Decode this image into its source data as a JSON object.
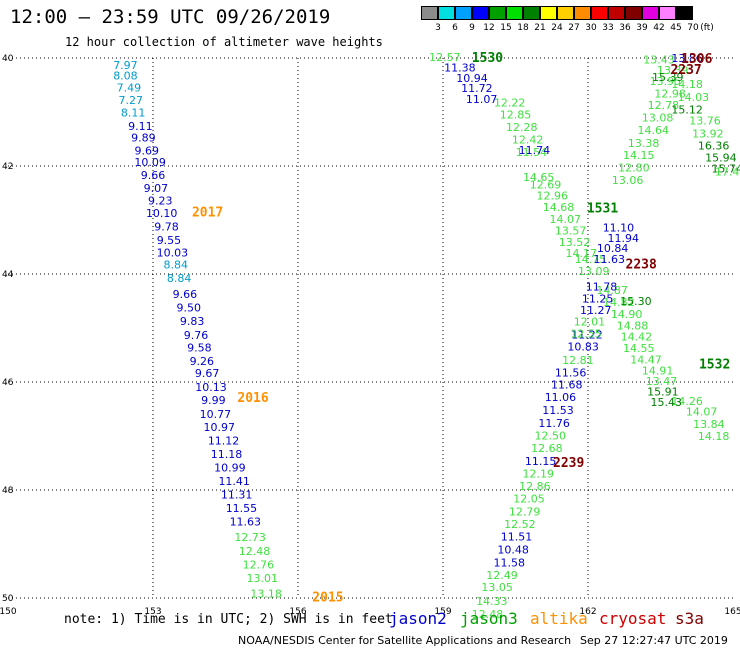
{
  "header": {
    "title": "12:00 — 23:59 UTC 09/26/2019",
    "subtitle": "12 hour collection of altimeter wave heights"
  },
  "color_scale": {
    "unit": "(ft)",
    "colors": [
      "#8c8c8c",
      "#00e0e0",
      "#00a0ff",
      "#0000ff",
      "#00a000",
      "#00e000",
      "#008000",
      "#ffff00",
      "#ffd000",
      "#ff8c00",
      "#ff0000",
      "#c00000",
      "#800000",
      "#e000e0",
      "#ff80ff",
      "#000000"
    ],
    "labels": [
      "3",
      "6",
      "9",
      "12",
      "15",
      "18",
      "21",
      "24",
      "27",
      "30",
      "33",
      "36",
      "39",
      "42",
      "45",
      "70"
    ]
  },
  "note": "note: 1) Time is in UTC; 2) SWH is in feet",
  "satellites": [
    {
      "name": "jason2",
      "color": "#0000cc"
    },
    {
      "name": "jason3",
      "color": "#00a000"
    },
    {
      "name": "altika",
      "color": "#ff9000"
    },
    {
      "name": "cryosat",
      "color": "#cc0000"
    },
    {
      "name": "s3a",
      "color": "#800000"
    }
  ],
  "footer": {
    "credit": "NOAA/NESDIS Center for Satellite Applications and Research",
    "timestamp": "Sep 27 12:27:47 UTC 2019"
  },
  "chart_data": {
    "type": "scatter",
    "title": "12:00 — 23:59 UTC 09/26/2019",
    "x_ticks": [
      "150",
      "153",
      "156",
      "159",
      "162",
      "165"
    ],
    "y_ticks": [
      "40",
      "42",
      "44",
      "46",
      "48",
      "50"
    ],
    "xlim": [
      150,
      165
    ],
    "ylim": [
      50,
      40
    ],
    "grid": true,
    "time_labels": [
      {
        "text": "2017",
        "lon": 154.13,
        "lat": 42.84,
        "color": "#ff9000"
      },
      {
        "text": "2016",
        "lon": 155.07,
        "lat": 46.28,
        "color": "#ff9000"
      },
      {
        "text": "2015",
        "lon": 156.62,
        "lat": 49.97,
        "color": "#ff9000"
      },
      {
        "text": "1530",
        "lon": 159.92,
        "lat": 39.98,
        "color": "#008000"
      },
      {
        "text": "1531",
        "lon": 162.3,
        "lat": 42.77,
        "color": "#008000"
      },
      {
        "text": "1532",
        "lon": 164.62,
        "lat": 45.66,
        "color": "#008000"
      },
      {
        "text": "2238",
        "lon": 163.1,
        "lat": 43.81,
        "color": "#800000"
      },
      {
        "text": "2239",
        "lon": 161.6,
        "lat": 47.48,
        "color": "#800000"
      },
      {
        "text": "1306",
        "lon": 164.25,
        "lat": 40.0,
        "color": "#800000"
      },
      {
        "text": "2237",
        "lon": 164.03,
        "lat": 40.2,
        "color": "#800000"
      }
    ],
    "series": [
      {
        "name": "",
        "color": "#009ccc",
        "points": [
          {
            "lon": 152.43,
            "lat": 40.13,
            "v": "7.97"
          },
          {
            "lon": 152.43,
            "lat": 40.32,
            "v": "8.08"
          },
          {
            "lon": 152.5,
            "lat": 40.55,
            "v": "7.49"
          },
          {
            "lon": 152.54,
            "lat": 40.78,
            "v": "7.27"
          },
          {
            "lon": 152.59,
            "lat": 41.01,
            "v": "8.11"
          }
        ]
      },
      {
        "name": "",
        "color": "#0000cc",
        "points": [
          {
            "lon": 152.74,
            "lat": 41.26,
            "v": "9.11"
          },
          {
            "lon": 152.8,
            "lat": 41.47,
            "v": "9.89"
          },
          {
            "lon": 152.87,
            "lat": 41.71,
            "v": "9.69"
          },
          {
            "lon": 152.94,
            "lat": 41.93,
            "v": "10.09"
          },
          {
            "lon": 153.0,
            "lat": 42.17,
            "v": "9.66"
          },
          {
            "lon": 153.06,
            "lat": 42.41,
            "v": "9.07"
          },
          {
            "lon": 153.15,
            "lat": 42.64,
            "v": "9.23"
          },
          {
            "lon": 153.18,
            "lat": 42.87,
            "v": "10.10"
          },
          {
            "lon": 153.28,
            "lat": 43.12,
            "v": "9.78"
          },
          {
            "lon": 153.33,
            "lat": 43.37,
            "v": "9.55"
          },
          {
            "lon": 153.4,
            "lat": 43.6,
            "v": "10.03"
          }
        ]
      },
      {
        "name": "",
        "color": "#009ccc",
        "points": [
          {
            "lon": 153.47,
            "lat": 43.82,
            "v": "8.84"
          },
          {
            "lon": 153.54,
            "lat": 44.07,
            "v": "8.84"
          }
        ]
      },
      {
        "name": "",
        "color": "#0000cc",
        "points": [
          {
            "lon": 153.66,
            "lat": 44.37,
            "v": "9.66"
          },
          {
            "lon": 153.74,
            "lat": 44.62,
            "v": "9.50"
          },
          {
            "lon": 153.81,
            "lat": 44.87,
            "v": "9.83"
          },
          {
            "lon": 153.89,
            "lat": 45.13,
            "v": "9.76"
          },
          {
            "lon": 153.96,
            "lat": 45.36,
            "v": "9.58"
          },
          {
            "lon": 154.01,
            "lat": 45.61,
            "v": "9.26"
          },
          {
            "lon": 154.12,
            "lat": 45.83,
            "v": "9.67"
          },
          {
            "lon": 154.2,
            "lat": 46.09,
            "v": "10.13"
          },
          {
            "lon": 154.25,
            "lat": 46.33,
            "v": "9.99"
          },
          {
            "lon": 154.29,
            "lat": 46.59,
            "v": "10.77"
          },
          {
            "lon": 154.37,
            "lat": 46.83,
            "v": "10.97"
          },
          {
            "lon": 154.46,
            "lat": 47.08,
            "v": "11.12"
          },
          {
            "lon": 154.52,
            "lat": 47.33,
            "v": "11.18"
          },
          {
            "lon": 154.59,
            "lat": 47.58,
            "v": "10.99"
          },
          {
            "lon": 154.68,
            "lat": 47.83,
            "v": "11.41"
          },
          {
            "lon": 154.73,
            "lat": 48.08,
            "v": "11.31"
          },
          {
            "lon": 154.83,
            "lat": 48.33,
            "v": "11.55"
          },
          {
            "lon": 154.91,
            "lat": 48.58,
            "v": "11.63"
          }
        ]
      },
      {
        "name": "",
        "color": "#40e040",
        "points": [
          {
            "lon": 155.01,
            "lat": 48.87,
            "v": "12.73"
          },
          {
            "lon": 155.1,
            "lat": 49.13,
            "v": "12.48"
          },
          {
            "lon": 155.18,
            "lat": 49.38,
            "v": "12.76"
          },
          {
            "lon": 155.26,
            "lat": 49.63,
            "v": "13.01"
          },
          {
            "lon": 155.34,
            "lat": 49.92,
            "v": "13.18"
          }
        ]
      },
      {
        "name": "",
        "color": "#40e040",
        "points": [
          {
            "lon": 159.04,
            "lat": 39.98,
            "v": "12.57"
          },
          {
            "lon": 160.38,
            "lat": 40.82,
            "v": "12.22"
          },
          {
            "lon": 160.5,
            "lat": 41.05,
            "v": "12.85"
          },
          {
            "lon": 160.63,
            "lat": 41.28,
            "v": "12.28"
          },
          {
            "lon": 160.75,
            "lat": 41.51,
            "v": "12.42"
          },
          {
            "lon": 160.83,
            "lat": 41.74,
            "v": "11.54"
          },
          {
            "lon": 160.98,
            "lat": 42.2,
            "v": "14.65"
          },
          {
            "lon": 161.12,
            "lat": 42.34,
            "v": "12.69"
          },
          {
            "lon": 161.26,
            "lat": 42.55,
            "v": "12.96"
          },
          {
            "lon": 161.39,
            "lat": 42.76,
            "v": "14.68"
          },
          {
            "lon": 161.53,
            "lat": 42.98,
            "v": "14.07"
          },
          {
            "lon": 161.64,
            "lat": 43.19,
            "v": "13.57"
          },
          {
            "lon": 161.72,
            "lat": 43.41,
            "v": "13.52"
          },
          {
            "lon": 161.86,
            "lat": 43.61,
            "v": "14.17"
          },
          {
            "lon": 162.05,
            "lat": 43.72,
            "v": "14.75"
          },
          {
            "lon": 162.12,
            "lat": 43.94,
            "v": "13.09"
          },
          {
            "lon": 162.5,
            "lat": 44.3,
            "v": "14.87"
          },
          {
            "lon": 162.64,
            "lat": 44.52,
            "v": "14.82"
          },
          {
            "lon": 162.8,
            "lat": 44.74,
            "v": "14.90"
          },
          {
            "lon": 162.92,
            "lat": 44.95,
            "v": "14.88"
          },
          {
            "lon": 163.0,
            "lat": 45.16,
            "v": "14.42"
          },
          {
            "lon": 163.05,
            "lat": 45.37,
            "v": "14.55"
          },
          {
            "lon": 163.2,
            "lat": 45.58,
            "v": "14.47"
          },
          {
            "lon": 163.44,
            "lat": 45.79,
            "v": "14.91"
          },
          {
            "lon": 163.52,
            "lat": 45.98,
            "v": "13.47"
          }
        ]
      },
      {
        "name": "",
        "color": "#0000cc",
        "points": [
          {
            "lon": 159.35,
            "lat": 40.18,
            "v": "11.38"
          },
          {
            "lon": 159.6,
            "lat": 40.37,
            "v": "10.94"
          },
          {
            "lon": 159.7,
            "lat": 40.56,
            "v": "11.72"
          },
          {
            "lon": 159.8,
            "lat": 40.76,
            "v": "11.07"
          },
          {
            "lon": 160.89,
            "lat": 41.7,
            "v": "11.74"
          },
          {
            "lon": 162.63,
            "lat": 43.14,
            "v": "11.10"
          },
          {
            "lon": 162.73,
            "lat": 43.33,
            "v": "11.94"
          },
          {
            "lon": 162.51,
            "lat": 43.52,
            "v": "10.84"
          },
          {
            "lon": 162.44,
            "lat": 43.72,
            "v": "11.63"
          },
          {
            "lon": 162.28,
            "lat": 44.23,
            "v": "11.78"
          },
          {
            "lon": 162.2,
            "lat": 44.45,
            "v": "11.25"
          },
          {
            "lon": 162.16,
            "lat": 44.67,
            "v": "11.27"
          },
          {
            "lon": 161.98,
            "lat": 45.12,
            "v": "11.22"
          },
          {
            "lon": 161.9,
            "lat": 45.34,
            "v": "10.83"
          }
        ]
      },
      {
        "name": "",
        "color": "#40e040",
        "points": [
          {
            "lon": 162.03,
            "lat": 44.88,
            "v": "12.01"
          },
          {
            "lon": 161.96,
            "lat": 45.1,
            "v": "12.55"
          },
          {
            "lon": 161.79,
            "lat": 45.59,
            "v": "12.81"
          }
        ]
      },
      {
        "name": "",
        "color": "#0000cc",
        "points": [
          {
            "lon": 161.64,
            "lat": 45.82,
            "v": "11.56"
          },
          {
            "lon": 161.56,
            "lat": 46.05,
            "v": "11.68"
          },
          {
            "lon": 161.43,
            "lat": 46.28,
            "v": "11.06"
          },
          {
            "lon": 161.38,
            "lat": 46.52,
            "v": "11.53"
          },
          {
            "lon": 161.3,
            "lat": 46.76,
            "v": "11.76"
          }
        ]
      },
      {
        "name": "",
        "color": "#40e040",
        "points": [
          {
            "lon": 161.22,
            "lat": 46.99,
            "v": "12.50"
          },
          {
            "lon": 161.15,
            "lat": 47.22,
            "v": "12.68"
          }
        ]
      },
      {
        "name": "",
        "color": "#0000cc",
        "points": [
          {
            "lon": 161.02,
            "lat": 47.46,
            "v": "11.15"
          }
        ]
      },
      {
        "name": "",
        "color": "#40e040",
        "points": [
          {
            "lon": 160.97,
            "lat": 47.69,
            "v": "12.19"
          },
          {
            "lon": 160.9,
            "lat": 47.93,
            "v": "12.86"
          },
          {
            "lon": 160.78,
            "lat": 48.16,
            "v": "12.05"
          },
          {
            "lon": 160.69,
            "lat": 48.4,
            "v": "12.79"
          },
          {
            "lon": 160.59,
            "lat": 48.63,
            "v": "12.52"
          }
        ]
      },
      {
        "name": "",
        "color": "#0000cc",
        "points": [
          {
            "lon": 160.52,
            "lat": 48.86,
            "v": "11.51"
          },
          {
            "lon": 160.45,
            "lat": 49.1,
            "v": "10.48"
          },
          {
            "lon": 160.37,
            "lat": 49.34,
            "v": "11.58"
          }
        ]
      },
      {
        "name": "",
        "color": "#40e040",
        "points": [
          {
            "lon": 160.22,
            "lat": 49.57,
            "v": "12.49"
          },
          {
            "lon": 160.12,
            "lat": 49.8,
            "v": "13.05"
          },
          {
            "lon": 160.01,
            "lat": 50.06,
            "v": "14.33"
          },
          {
            "lon": 159.92,
            "lat": 50.3,
            "v": "12.48"
          }
        ]
      },
      {
        "name": "",
        "color": "#40e040",
        "points": [
          {
            "lon": 163.47,
            "lat": 40.03,
            "v": "13.43"
          },
          {
            "lon": 163.75,
            "lat": 40.22,
            "v": "13.39"
          },
          {
            "lon": 163.6,
            "lat": 40.43,
            "v": "13.95"
          },
          {
            "lon": 163.7,
            "lat": 40.66,
            "v": "12.98"
          },
          {
            "lon": 163.56,
            "lat": 40.87,
            "v": "12.78"
          },
          {
            "lon": 163.44,
            "lat": 41.1,
            "v": "13.08"
          },
          {
            "lon": 163.35,
            "lat": 41.33,
            "v": "14.64"
          },
          {
            "lon": 163.15,
            "lat": 41.57,
            "v": "13.38"
          },
          {
            "lon": 163.05,
            "lat": 41.8,
            "v": "14.15"
          },
          {
            "lon": 162.95,
            "lat": 42.03,
            "v": "12.80"
          },
          {
            "lon": 162.82,
            "lat": 42.26,
            "v": "13.06"
          },
          {
            "lon": 164.05,
            "lat": 40.48,
            "v": "14.18"
          },
          {
            "lon": 164.18,
            "lat": 40.72,
            "v": "14.03"
          },
          {
            "lon": 164.42,
            "lat": 41.16,
            "v": "13.76"
          },
          {
            "lon": 164.48,
            "lat": 41.4,
            "v": "13.92"
          },
          {
            "lon": 164.95,
            "lat": 42.1,
            "v": "17.41"
          },
          {
            "lon": 164.05,
            "lat": 46.35,
            "v": "14.26"
          },
          {
            "lon": 164.35,
            "lat": 46.55,
            "v": "14.07"
          },
          {
            "lon": 164.5,
            "lat": 46.78,
            "v": "13.84"
          },
          {
            "lon": 164.6,
            "lat": 47.0,
            "v": "14.18"
          }
        ]
      },
      {
        "name": "",
        "color": "#008000",
        "points": [
          {
            "lon": 163.65,
            "lat": 40.35,
            "v": "15.39"
          },
          {
            "lon": 164.05,
            "lat": 40.95,
            "v": "15.12"
          },
          {
            "lon": 164.6,
            "lat": 41.62,
            "v": "16.36"
          },
          {
            "lon": 164.75,
            "lat": 41.84,
            "v": "15.94"
          },
          {
            "lon": 164.88,
            "lat": 42.05,
            "v": "15.74"
          },
          {
            "lon": 162.99,
            "lat": 44.5,
            "v": "15.30"
          },
          {
            "lon": 163.55,
            "lat": 46.18,
            "v": "15.91"
          },
          {
            "lon": 163.62,
            "lat": 46.37,
            "v": "15.43"
          }
        ]
      },
      {
        "name": "",
        "color": "#0000cc",
        "points": [
          {
            "lon": 164.05,
            "lat": 40.0,
            "v": "13.86"
          }
        ]
      }
    ]
  }
}
